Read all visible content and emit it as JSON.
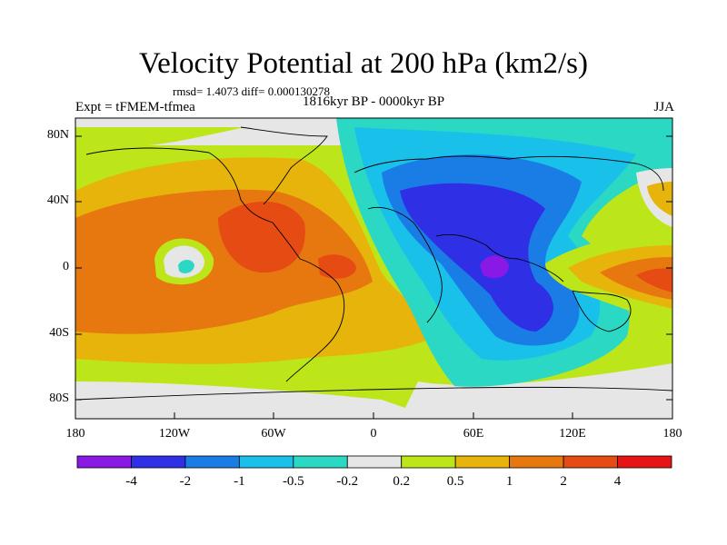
{
  "title": "Velocity Potential at 200 hPa (km2/s)",
  "stats": "rmsd= 1.4073 diff= 0.000130278",
  "experiment": "Expt = tFMEM-tfmea",
  "period": "1816kyr BP - 0000kyr BP",
  "season": "JJA",
  "lat_ticks": [
    "80N",
    "40N",
    "0",
    "40S",
    "80S"
  ],
  "lon_ticks": [
    "180",
    "120W",
    "60W",
    "0",
    "60E",
    "120E",
    "180"
  ],
  "colorbar": {
    "labels": [
      "-4",
      "-2",
      "-1",
      "-0.5",
      "-0.2",
      "0.2",
      "0.5",
      "1",
      "2",
      "4"
    ],
    "colors": [
      "#8a19e6",
      "#2f2fe6",
      "#1a7de6",
      "#19c0ea",
      "#2ad8c4",
      "#e6e6e6",
      "#bde61a",
      "#e6b40a",
      "#e6780f",
      "#e64b14",
      "#e61414"
    ]
  }
}
